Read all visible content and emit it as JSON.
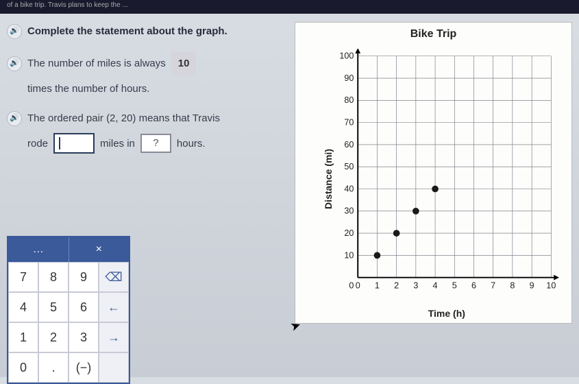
{
  "topbar": "of a bike trip. Travis plans to keep the ...",
  "statements": {
    "s1": "Complete the statement about the graph.",
    "s2a": "The number of miles is always",
    "s2_answer": "10",
    "s2b": "times the number of hours.",
    "s3a": "The ordered pair (2, 20) means that Travis",
    "s3b": "rode",
    "s3c": "miles in",
    "s3_q": "?",
    "s3d": "hours."
  },
  "keypad": {
    "header_dots": "…",
    "header_close": "×",
    "keys": [
      "7",
      "8",
      "9",
      "⌫",
      "4",
      "5",
      "6",
      "←",
      "1",
      "2",
      "3",
      "→",
      "0",
      ".",
      "(−)",
      ""
    ]
  },
  "chart": {
    "title": "Bike Trip",
    "ylabel": "Distance (mi)",
    "xlabel": "Time (h)",
    "type": "scatter",
    "xlim": [
      0,
      10
    ],
    "ylim": [
      0,
      100
    ],
    "xtick_step": 1,
    "ytick_step": 10,
    "grid_color": "#6a6a7a",
    "background_color": "#fdfdfb",
    "axis_fontsize": 13,
    "marker_color": "#1a1a1a",
    "marker_radius": 5,
    "points": [
      [
        1,
        10
      ],
      [
        2,
        20
      ],
      [
        3,
        30
      ],
      [
        4,
        40
      ]
    ]
  }
}
